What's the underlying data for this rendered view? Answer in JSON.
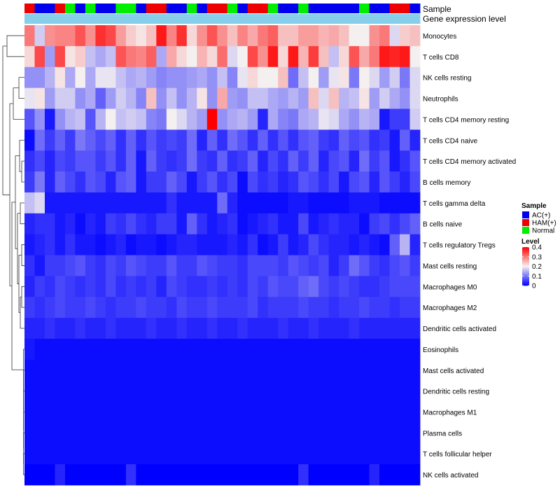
{
  "chart_data": {
    "type": "heatmap",
    "annotation_labels": [
      "Sample",
      "Gene expression level"
    ],
    "gene_expression_color": "#87ceeb",
    "rows": [
      "Monocytes",
      "T cells CD8",
      "NK cells resting",
      "Neutrophils",
      "T cells CD4 memory resting",
      "T cells CD4 naive",
      "T cells CD4 memory activated",
      "B cells memory",
      "T cells gamma delta",
      "B cells naive",
      "T cells regulatory  Tregs",
      "Mast cells resting",
      "Macrophages M0",
      "Macrophages M2",
      "Dendritic cells activated",
      "Eosinophils",
      "Mast cells activated",
      "Dendritic cells resting",
      "Macrophages M1",
      "Plasma cells",
      "T cells follicular helper",
      "NK cells activated"
    ],
    "samples": [
      "HAM(+)",
      "AC(+)",
      "AC(+)",
      "HAM(+)",
      "Normal",
      "AC(+)",
      "Normal",
      "AC(+)",
      "AC(+)",
      "Normal",
      "Normal",
      "AC(+)",
      "HAM(+)",
      "HAM(+)",
      "AC(+)",
      "AC(+)",
      "Normal",
      "AC(+)",
      "HAM(+)",
      "HAM(+)",
      "Normal",
      "AC(+)",
      "HAM(+)",
      "HAM(+)",
      "Normal",
      "AC(+)",
      "AC(+)",
      "Normal",
      "AC(+)",
      "AC(+)",
      "AC(+)",
      "AC(+)",
      "AC(+)",
      "Normal",
      "AC(+)",
      "AC(+)",
      "HAM(+)",
      "HAM(+)",
      "AC(+)"
    ],
    "values": [
      [
        0.3,
        0.17,
        0.28,
        0.29,
        0.29,
        0.33,
        0.28,
        0.36,
        0.34,
        0.27,
        0.23,
        0.21,
        0.24,
        0.38,
        0.29,
        0.36,
        0.22,
        0.28,
        0.33,
        0.28,
        0.24,
        0.29,
        0.26,
        0.3,
        0.32,
        0.24,
        0.24,
        0.27,
        0.27,
        0.25,
        0.26,
        0.24,
        0.2,
        0.2,
        0.28,
        0.3,
        0.18,
        0.23,
        0.24
      ],
      [
        0.22,
        0.34,
        0.13,
        0.34,
        0.21,
        0.23,
        0.16,
        0.14,
        0.16,
        0.33,
        0.3,
        0.29,
        0.32,
        0.14,
        0.26,
        0.22,
        0.2,
        0.25,
        0.22,
        0.31,
        0.18,
        0.2,
        0.34,
        0.28,
        0.38,
        0.22,
        0.38,
        0.25,
        0.35,
        0.24,
        0.16,
        0.22,
        0.33,
        0.26,
        0.3,
        0.38,
        0.37,
        0.38,
        0.2
      ],
      [
        0.12,
        0.12,
        0.15,
        0.21,
        0.14,
        0.2,
        0.14,
        0.19,
        0.19,
        0.16,
        0.14,
        0.15,
        0.13,
        0.11,
        0.12,
        0.12,
        0.13,
        0.14,
        0.12,
        0.16,
        0.11,
        0.19,
        0.22,
        0.2,
        0.2,
        0.24,
        0.09,
        0.16,
        0.2,
        0.13,
        0.19,
        0.21,
        0.1,
        0.2,
        0.18,
        0.13,
        0.17,
        0.1,
        0.18
      ],
      [
        0.19,
        0.21,
        0.13,
        0.17,
        0.17,
        0.12,
        0.14,
        0.08,
        0.13,
        0.17,
        0.15,
        0.11,
        0.24,
        0.12,
        0.16,
        0.12,
        0.15,
        0.21,
        0.12,
        0.26,
        0.13,
        0.12,
        0.16,
        0.16,
        0.14,
        0.13,
        0.15,
        0.13,
        0.24,
        0.18,
        0.24,
        0.15,
        0.16,
        0.21,
        0.13,
        0.17,
        0.14,
        0.12,
        0.18
      ],
      [
        0.07,
        0.12,
        0.02,
        0.12,
        0.15,
        0.16,
        0.07,
        0.15,
        0.2,
        0.16,
        0.17,
        0.16,
        0.11,
        0.1,
        0.2,
        0.18,
        0.15,
        0.13,
        0.4,
        0.12,
        0.14,
        0.15,
        0.13,
        0.03,
        0.14,
        0.11,
        0.1,
        0.14,
        0.15,
        0.19,
        0.18,
        0.14,
        0.12,
        0.15,
        0.14,
        0.02,
        0.05,
        0.05,
        0.17
      ],
      [
        0.01,
        0.09,
        0.05,
        0.08,
        0.05,
        0.1,
        0.08,
        0.06,
        0.08,
        0.04,
        0.08,
        0.04,
        0.07,
        0.05,
        0.06,
        0.05,
        0.09,
        0.03,
        0.08,
        0.04,
        0.09,
        0.07,
        0.04,
        0.08,
        0.04,
        0.07,
        0.04,
        0.07,
        0.08,
        0.05,
        0.04,
        0.08,
        0.06,
        0.07,
        0.04,
        0.05,
        0.02,
        0.08,
        0.03
      ],
      [
        0.04,
        0.06,
        0.03,
        0.06,
        0.05,
        0.07,
        0.07,
        0.05,
        0.07,
        0.04,
        0.08,
        0.02,
        0.08,
        0.05,
        0.04,
        0.05,
        0.09,
        0.05,
        0.04,
        0.08,
        0.04,
        0.05,
        0.08,
        0.03,
        0.06,
        0.04,
        0.08,
        0.05,
        0.08,
        0.03,
        0.06,
        0.07,
        0.03,
        0.09,
        0.05,
        0.07,
        0.02,
        0.04,
        0.07
      ],
      [
        0.05,
        0.1,
        0.03,
        0.08,
        0.06,
        0.04,
        0.07,
        0.06,
        0.03,
        0.07,
        0.08,
        0.02,
        0.05,
        0.05,
        0.08,
        0.06,
        0.02,
        0.05,
        0.07,
        0.04,
        0.06,
        0.01,
        0.06,
        0.04,
        0.05,
        0.03,
        0.04,
        0.07,
        0.06,
        0.04,
        0.06,
        0.02,
        0.06,
        0.07,
        0.03,
        0.07,
        0.05,
        0.03,
        0.06
      ],
      [
        0.16,
        0.18,
        0.02,
        0.02,
        0.02,
        0.02,
        0.02,
        0.02,
        0.02,
        0.02,
        0.02,
        0.02,
        0.02,
        0.02,
        0.04,
        0.02,
        0.02,
        0.02,
        0.02,
        0.09,
        0.03,
        0.01,
        0.01,
        0.01,
        0.01,
        0.01,
        0.02,
        0.02,
        0.01,
        0.01,
        0.01,
        0.01,
        0.02,
        0.02,
        0.02,
        0.01,
        0.01,
        0.01,
        0.01
      ],
      [
        0.03,
        0.04,
        0.04,
        0.02,
        0.03,
        0.01,
        0.03,
        0.02,
        0.05,
        0.04,
        0.06,
        0.04,
        0.03,
        0.05,
        0.05,
        0.02,
        0.08,
        0.04,
        0.02,
        0.03,
        0.04,
        0.01,
        0.02,
        0.03,
        0.04,
        0.02,
        0.02,
        0.06,
        0.02,
        0.03,
        0.04,
        0.03,
        0.03,
        0.01,
        0.05,
        0.06,
        0.04,
        0.06,
        0.08
      ],
      [
        0.02,
        0.03,
        0.04,
        0.02,
        0.04,
        0.02,
        0.02,
        0.01,
        0.02,
        0.03,
        0.01,
        0.02,
        0.02,
        0.01,
        0.02,
        0.03,
        0.03,
        0.02,
        0.02,
        0.02,
        0.03,
        0.02,
        0.04,
        0.01,
        0.02,
        0.05,
        0.02,
        0.03,
        0.06,
        0.04,
        0.03,
        0.03,
        0.02,
        0.03,
        0.02,
        0.01,
        0.08,
        0.15,
        0.03
      ],
      [
        0.04,
        0.02,
        0.05,
        0.05,
        0.06,
        0.07,
        0.05,
        0.04,
        0.06,
        0.05,
        0.07,
        0.06,
        0.05,
        0.05,
        0.07,
        0.05,
        0.05,
        0.07,
        0.06,
        0.05,
        0.05,
        0.04,
        0.06,
        0.06,
        0.06,
        0.05,
        0.07,
        0.06,
        0.05,
        0.06,
        0.03,
        0.05,
        0.09,
        0.07,
        0.05,
        0.04,
        0.06,
        0.07,
        0.05
      ],
      [
        0.03,
        0.05,
        0.04,
        0.06,
        0.05,
        0.04,
        0.05,
        0.04,
        0.06,
        0.04,
        0.05,
        0.04,
        0.05,
        0.03,
        0.06,
        0.05,
        0.04,
        0.04,
        0.05,
        0.04,
        0.05,
        0.04,
        0.06,
        0.05,
        0.07,
        0.06,
        0.06,
        0.08,
        0.09,
        0.06,
        0.05,
        0.06,
        0.05,
        0.04,
        0.04,
        0.05,
        0.06,
        0.06,
        0.06
      ],
      [
        0.05,
        0.04,
        0.05,
        0.06,
        0.05,
        0.05,
        0.06,
        0.05,
        0.04,
        0.05,
        0.05,
        0.06,
        0.05,
        0.05,
        0.04,
        0.06,
        0.05,
        0.05,
        0.06,
        0.05,
        0.05,
        0.05,
        0.06,
        0.04,
        0.05,
        0.05,
        0.05,
        0.06,
        0.05,
        0.05,
        0.04,
        0.05,
        0.05,
        0.06,
        0.05,
        0.05,
        0.04,
        0.05,
        0.05
      ],
      [
        0.03,
        0.03,
        0.04,
        0.03,
        0.03,
        0.04,
        0.03,
        0.03,
        0.04,
        0.03,
        0.03,
        0.03,
        0.04,
        0.03,
        0.03,
        0.04,
        0.03,
        0.03,
        0.04,
        0.03,
        0.03,
        0.04,
        0.03,
        0.03,
        0.03,
        0.04,
        0.03,
        0.03,
        0.04,
        0.03,
        0.03,
        0.03,
        0.04,
        0.03,
        0.03,
        0.03,
        0.03,
        0.03,
        0.03
      ],
      [
        0.02,
        0.01,
        0.01,
        0.01,
        0.01,
        0.01,
        0.01,
        0.01,
        0.01,
        0.01,
        0.01,
        0.01,
        0.01,
        0.01,
        0.01,
        0.01,
        0.01,
        0.01,
        0.01,
        0.01,
        0.01,
        0.01,
        0.01,
        0.01,
        0.01,
        0.01,
        0.01,
        0.01,
        0.01,
        0.01,
        0.01,
        0.01,
        0.01,
        0.01,
        0.01,
        0.01,
        0.01,
        0.01,
        0.01
      ],
      [
        0.01,
        0.01,
        0.01,
        0.01,
        0.01,
        0.01,
        0.01,
        0.01,
        0.01,
        0.01,
        0.01,
        0.01,
        0.01,
        0.01,
        0.01,
        0.01,
        0.01,
        0.01,
        0.01,
        0.01,
        0.01,
        0.01,
        0.01,
        0.01,
        0.01,
        0.01,
        0.01,
        0.01,
        0.01,
        0.01,
        0.01,
        0.01,
        0.01,
        0.01,
        0.01,
        0.01,
        0.01,
        0.01,
        0.01
      ],
      [
        0.01,
        0.01,
        0.01,
        0.01,
        0.01,
        0.01,
        0.01,
        0.01,
        0.01,
        0.01,
        0.01,
        0.01,
        0.01,
        0.01,
        0.01,
        0.01,
        0.01,
        0.01,
        0.01,
        0.01,
        0.01,
        0.01,
        0.01,
        0.01,
        0.01,
        0.01,
        0.01,
        0.01,
        0.01,
        0.01,
        0.01,
        0.01,
        0.01,
        0.01,
        0.01,
        0.01,
        0.01,
        0.01,
        0.01
      ],
      [
        0.01,
        0.01,
        0.01,
        0.01,
        0.01,
        0.01,
        0.01,
        0.01,
        0.01,
        0.01,
        0.01,
        0.01,
        0.01,
        0.01,
        0.01,
        0.01,
        0.01,
        0.01,
        0.01,
        0.01,
        0.01,
        0.01,
        0.01,
        0.01,
        0.01,
        0.01,
        0.01,
        0.01,
        0.01,
        0.01,
        0.01,
        0.01,
        0.01,
        0.01,
        0.01,
        0.01,
        0.01,
        0.01,
        0.01
      ],
      [
        0.01,
        0.01,
        0.01,
        0.01,
        0.01,
        0.01,
        0.01,
        0.01,
        0.01,
        0.01,
        0.01,
        0.01,
        0.01,
        0.01,
        0.01,
        0.01,
        0.01,
        0.01,
        0.01,
        0.01,
        0.01,
        0.01,
        0.01,
        0.01,
        0.01,
        0.01,
        0.01,
        0.01,
        0.01,
        0.01,
        0.01,
        0.01,
        0.01,
        0.01,
        0.01,
        0.01,
        0.01,
        0.01,
        0.01
      ],
      [
        0.01,
        0.01,
        0.01,
        0.01,
        0.01,
        0.01,
        0.01,
        0.01,
        0.01,
        0.01,
        0.01,
        0.01,
        0.01,
        0.01,
        0.01,
        0.01,
        0.01,
        0.01,
        0.01,
        0.01,
        0.01,
        0.01,
        0.01,
        0.01,
        0.01,
        0.01,
        0.01,
        0.01,
        0.01,
        0.01,
        0.01,
        0.01,
        0.01,
        0.01,
        0.01,
        0.01,
        0.01,
        0.01,
        0.01
      ],
      [
        0.0,
        0.0,
        0.0,
        0.03,
        0.0,
        0.0,
        0.0,
        0.0,
        0.0,
        0.0,
        0.04,
        0.0,
        0.0,
        0.0,
        0.0,
        0.0,
        0.0,
        0.0,
        0.0,
        0.0,
        0.0,
        0.0,
        0.0,
        0.0,
        0.0,
        0.0,
        0.0,
        0.04,
        0.0,
        0.0,
        0.0,
        0.0,
        0.0,
        0.0,
        0.03,
        0.0,
        0.0,
        0.0,
        0.0
      ]
    ],
    "legend": {
      "sample_title": "Sample",
      "sample_entries": [
        {
          "label": "AC(+)",
          "color": "#0000ee"
        },
        {
          "label": "HAM(+)",
          "color": "#ee0000"
        },
        {
          "label": "Normal",
          "color": "#00ee00"
        }
      ],
      "level_title": "Level",
      "level_ticks": [
        {
          "label": "0.4",
          "value": 0.4
        },
        {
          "label": "0.3",
          "value": 0.3
        },
        {
          "label": "0.2",
          "value": 0.2
        },
        {
          "label": "0.1",
          "value": 0.1
        },
        {
          "label": "0",
          "value": 0
        }
      ],
      "level_range": [
        0,
        0.4
      ],
      "colors": {
        "low": "#0000ff",
        "mid": "#f5f0f0",
        "high": "#ff0000"
      }
    }
  }
}
